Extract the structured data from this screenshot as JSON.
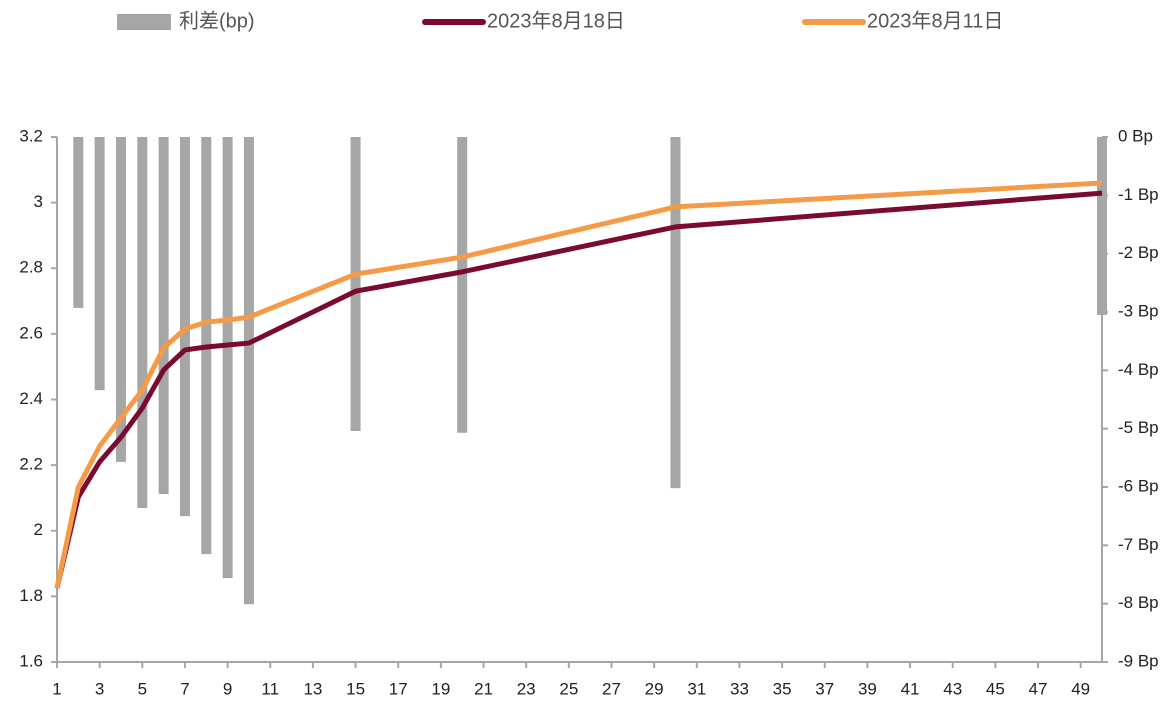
{
  "chart_data": {
    "type": "bar_line",
    "x": [
      1,
      2,
      3,
      4,
      5,
      6,
      7,
      8,
      9,
      10,
      15,
      20,
      30,
      50
    ],
    "series": [
      {
        "name": "利差(bp)",
        "type": "bar",
        "axis": "y2",
        "color": "#a6a6a6",
        "values": [
          0,
          -2.93,
          -4.34,
          -5.57,
          -6.36,
          -6.12,
          -6.5,
          -7.15,
          -7.56,
          -8.01,
          -5.04,
          -5.07,
          -6.02,
          -3.05
        ]
      },
      {
        "name": "2023年8月18日",
        "type": "line",
        "color": "#7b0a32",
        "values": [
          1.825,
          2.103,
          2.21,
          2.285,
          2.374,
          2.49,
          2.551,
          2.56,
          2.566,
          2.572,
          2.73,
          2.789,
          2.926,
          3.029
        ]
      },
      {
        "name": "2023年8月11日",
        "type": "line",
        "color": "#f59b48",
        "values": [
          1.825,
          2.133,
          2.258,
          2.344,
          2.429,
          2.557,
          2.615,
          2.636,
          2.642,
          2.651,
          2.782,
          2.834,
          2.987,
          3.06
        ]
      }
    ],
    "xlim": [
      1,
      50
    ],
    "xticks": [
      1,
      3,
      5,
      7,
      9,
      11,
      13,
      15,
      17,
      19,
      21,
      23,
      25,
      27,
      29,
      31,
      33,
      35,
      37,
      39,
      41,
      43,
      45,
      47,
      49
    ],
    "ylim": [
      1.6,
      3.2
    ],
    "yticks": [
      1.6,
      1.8,
      2,
      2.2,
      2.4,
      2.6,
      2.8,
      3,
      3.2
    ],
    "y2lim": [
      -9,
      0
    ],
    "y2ticks": [
      {
        "value": -9,
        "label": "-9 Bp"
      },
      {
        "value": -8,
        "label": "-8 Bp"
      },
      {
        "value": -7,
        "label": "-7 Bp"
      },
      {
        "value": -6,
        "label": "-6 Bp"
      },
      {
        "value": -5,
        "label": "-5 Bp"
      },
      {
        "value": -4,
        "label": "-4 Bp"
      },
      {
        "value": -3,
        "label": "-3 Bp"
      },
      {
        "value": -2,
        "label": "-2 Bp"
      },
      {
        "value": -1,
        "label": "-1 Bp"
      },
      {
        "value": 0,
        "label": "0 Bp"
      }
    ],
    "legend": "top"
  }
}
